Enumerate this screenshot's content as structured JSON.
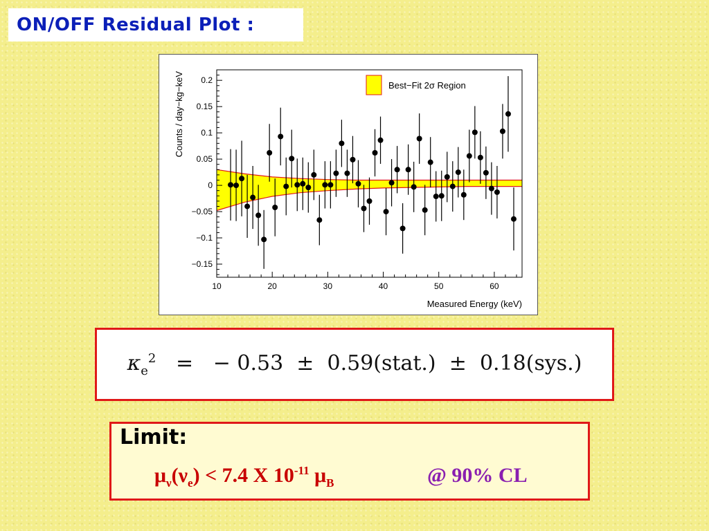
{
  "slide": {
    "title": "ON/OFF Residual Plot :"
  },
  "formula": {
    "symbol": "κ",
    "subscript": "e",
    "power": "2",
    "equals": "=",
    "value": "− 0.53",
    "pm1": "±",
    "stat": "0.59(stat.)",
    "pm2": "±",
    "sys": "0.18(sys.)"
  },
  "limit": {
    "label": "Limit:",
    "mu": "μ",
    "nu_sub": "ν",
    "paren_open": "(",
    "nu": "ν",
    "e_sub": "e",
    "paren_close": ")",
    "lt": " < 7.4 X 10",
    "exp": "-11",
    "mu2": " μ",
    "b_sub": "B",
    "cl": "@ 90% CL"
  },
  "colors": {
    "title_text": "#0b1fb8",
    "band_fill": "#ffff00",
    "band_edge": "#e01818",
    "box_border": "#e01818",
    "limit_red": "#c80000",
    "cl_purple": "#8a1fb0"
  },
  "chart_data": {
    "type": "scatter",
    "xlabel": "Measured Energy (keV)",
    "ylabel": "Counts / day−kg−keV",
    "xlim": [
      10,
      65
    ],
    "ylim": [
      -0.175,
      0.22
    ],
    "x_ticks": [
      10,
      20,
      30,
      40,
      50,
      60
    ],
    "y_ticks": [
      -0.15,
      -0.1,
      -0.05,
      0,
      0.05,
      0.1,
      0.15,
      0.2
    ],
    "y_tick_labels": [
      "−0.15",
      "−0.1",
      "−0.05",
      "0",
      "0.05",
      "0.1",
      "0.15",
      "0.2"
    ],
    "legend": {
      "label": "Best−Fit 2σ Region",
      "placement": "top-right"
    },
    "band": {
      "x": [
        10,
        15,
        20,
        25,
        30,
        35,
        40,
        45,
        50,
        55,
        60,
        65
      ],
      "upper": [
        0.03,
        0.022,
        0.016,
        0.013,
        0.011,
        0.01,
        0.01,
        0.01,
        0.01,
        0.01,
        0.01,
        0.01
      ],
      "lower": [
        -0.048,
        -0.032,
        -0.021,
        -0.014,
        -0.01,
        -0.007,
        -0.005,
        -0.004,
        -0.003,
        -0.002,
        -0.002,
        -0.002
      ]
    },
    "points": [
      {
        "x": 12.5,
        "y": 0.001,
        "err": 0.068
      },
      {
        "x": 13.5,
        "y": 0.0,
        "err": 0.068
      },
      {
        "x": 14.5,
        "y": 0.013,
        "err": 0.072
      },
      {
        "x": 15.5,
        "y": -0.04,
        "err": 0.06
      },
      {
        "x": 16.5,
        "y": -0.023,
        "err": 0.06
      },
      {
        "x": 17.5,
        "y": -0.057,
        "err": 0.058
      },
      {
        "x": 18.5,
        "y": -0.103,
        "err": 0.056
      },
      {
        "x": 19.5,
        "y": 0.062,
        "err": 0.055
      },
      {
        "x": 20.5,
        "y": -0.042,
        "err": 0.055
      },
      {
        "x": 21.5,
        "y": 0.093,
        "err": 0.055
      },
      {
        "x": 22.5,
        "y": -0.002,
        "err": 0.055
      },
      {
        "x": 23.5,
        "y": 0.051,
        "err": 0.055
      },
      {
        "x": 24.5,
        "y": 0.001,
        "err": 0.05
      },
      {
        "x": 25.5,
        "y": 0.003,
        "err": 0.05
      },
      {
        "x": 26.5,
        "y": -0.004,
        "err": 0.048
      },
      {
        "x": 27.5,
        "y": 0.02,
        "err": 0.048
      },
      {
        "x": 28.5,
        "y": -0.066,
        "err": 0.048
      },
      {
        "x": 29.5,
        "y": 0.001,
        "err": 0.045
      },
      {
        "x": 30.5,
        "y": 0.001,
        "err": 0.045
      },
      {
        "x": 31.5,
        "y": 0.023,
        "err": 0.045
      },
      {
        "x": 32.5,
        "y": 0.08,
        "err": 0.045
      },
      {
        "x": 33.5,
        "y": 0.023,
        "err": 0.045
      },
      {
        "x": 34.5,
        "y": 0.049,
        "err": 0.045
      },
      {
        "x": 35.5,
        "y": 0.003,
        "err": 0.045
      },
      {
        "x": 36.5,
        "y": -0.044,
        "err": 0.045
      },
      {
        "x": 37.5,
        "y": -0.03,
        "err": 0.045
      },
      {
        "x": 38.5,
        "y": 0.062,
        "err": 0.045
      },
      {
        "x": 39.5,
        "y": 0.086,
        "err": 0.045
      },
      {
        "x": 40.5,
        "y": -0.05,
        "err": 0.045
      },
      {
        "x": 41.5,
        "y": 0.005,
        "err": 0.045
      },
      {
        "x": 42.5,
        "y": 0.03,
        "err": 0.045
      },
      {
        "x": 43.5,
        "y": -0.082,
        "err": 0.048
      },
      {
        "x": 44.5,
        "y": 0.03,
        "err": 0.048
      },
      {
        "x": 45.5,
        "y": -0.003,
        "err": 0.048
      },
      {
        "x": 46.5,
        "y": 0.089,
        "err": 0.048
      },
      {
        "x": 47.5,
        "y": -0.047,
        "err": 0.048
      },
      {
        "x": 48.5,
        "y": 0.044,
        "err": 0.048
      },
      {
        "x": 49.5,
        "y": -0.021,
        "err": 0.048
      },
      {
        "x": 50.5,
        "y": -0.02,
        "err": 0.048
      },
      {
        "x": 51.5,
        "y": 0.016,
        "err": 0.048
      },
      {
        "x": 52.5,
        "y": -0.002,
        "err": 0.048
      },
      {
        "x": 53.5,
        "y": 0.025,
        "err": 0.048
      },
      {
        "x": 54.5,
        "y": -0.018,
        "err": 0.048
      },
      {
        "x": 55.5,
        "y": 0.056,
        "err": 0.05
      },
      {
        "x": 56.5,
        "y": 0.101,
        "err": 0.05
      },
      {
        "x": 57.5,
        "y": 0.053,
        "err": 0.05
      },
      {
        "x": 58.5,
        "y": 0.024,
        "err": 0.05
      },
      {
        "x": 59.5,
        "y": -0.006,
        "err": 0.05
      },
      {
        "x": 60.5,
        "y": -0.013,
        "err": 0.05
      },
      {
        "x": 61.5,
        "y": 0.103,
        "err": 0.052
      },
      {
        "x": 62.5,
        "y": 0.136,
        "err": 0.072
      },
      {
        "x": 63.5,
        "y": -0.064,
        "err": 0.06
      }
    ]
  }
}
